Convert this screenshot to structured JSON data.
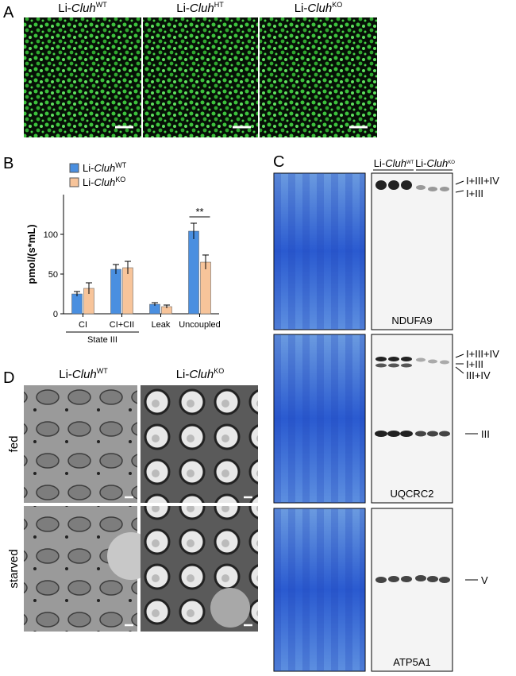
{
  "panel_labels": [
    "A",
    "B",
    "C",
    "D"
  ],
  "panel_a": {
    "headers": [
      {
        "prefix": "Li-",
        "gene": "Cluh",
        "genotype": "WT"
      },
      {
        "prefix": "Li-",
        "gene": "Cluh",
        "genotype": "HT"
      },
      {
        "prefix": "Li-",
        "gene": "Cluh",
        "genotype": "KO"
      }
    ]
  },
  "chart_data": {
    "type": "bar",
    "ylabel": "pmol/(s*mL)",
    "categories": [
      "CI",
      "CI+CII",
      "Leak",
      "Uncoupled"
    ],
    "group_label": "State III",
    "annotation": "**",
    "ylim": [
      0,
      150
    ],
    "yticks": [
      0,
      50,
      100
    ],
    "series": [
      {
        "name": "Li-",
        "gene": "Cluh",
        "genotype": "WT",
        "color": "#4a8fe0",
        "values": [
          25,
          56,
          12,
          104
        ],
        "errors": [
          3,
          6,
          2,
          10
        ]
      },
      {
        "name": "Li-",
        "gene": "Cluh",
        "genotype": "KO",
        "color": "#f7c49a",
        "values": [
          32,
          58,
          9,
          65
        ],
        "errors": [
          7,
          8,
          2,
          9
        ]
      }
    ]
  },
  "panel_c": {
    "headers": [
      {
        "prefix": "Li-",
        "gene": "Cluh",
        "genotype": "WT"
      },
      {
        "prefix": "Li-",
        "gene": "Cluh",
        "genotype": "KO"
      }
    ],
    "blots": [
      {
        "antibody": "NDUFA9",
        "bands": [
          "I+III+IV",
          "I+III"
        ]
      },
      {
        "antibody": "UQCRC2",
        "bands": [
          "I+III+IV",
          "I+III",
          "III+IV",
          "III"
        ]
      },
      {
        "antibody": "ATP5A1",
        "bands": [
          "V"
        ]
      }
    ]
  },
  "panel_d": {
    "headers": [
      {
        "prefix": "Li-",
        "gene": "Cluh",
        "genotype": "WT"
      },
      {
        "prefix": "Li-",
        "gene": "Cluh",
        "genotype": "KO"
      }
    ],
    "rows": [
      "fed",
      "starved"
    ]
  }
}
